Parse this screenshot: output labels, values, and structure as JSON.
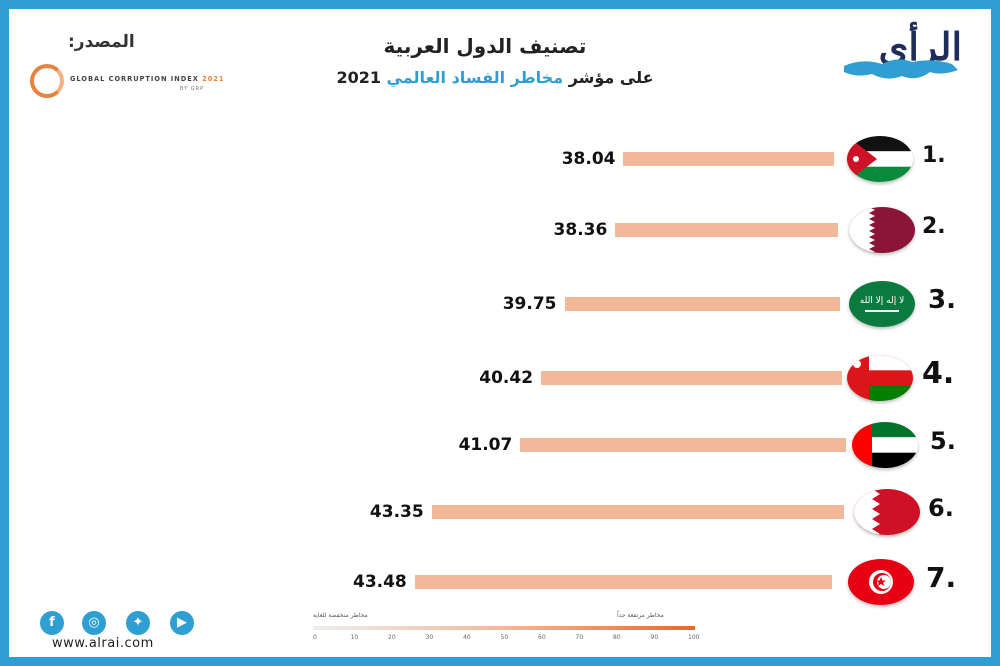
{
  "header": {
    "title": "تصنيف الدول العربية",
    "subtitle_prefix": "على مؤشر",
    "subtitle_highlight": "مخاطر الفساد العالمي",
    "subtitle_year": "2021",
    "source_label": "المصدر:",
    "source_logo_text": "GLOBAL CORRUPTION INDEX",
    "source_logo_year": "2021",
    "source_logo_by": "BY GRP",
    "brand_logo": "الرأي"
  },
  "colors": {
    "bar": "#f2b89a",
    "accent": "#2f9fd3",
    "gci": "#e8823f"
  },
  "chart_data": {
    "type": "bar",
    "orientation": "horizontal",
    "title": "تصنيف الدول العربية على مؤشر مخاطر الفساد العالمي 2021",
    "categories": [
      "Jordan",
      "Qatar",
      "Saudi Arabia",
      "Oman",
      "UAE",
      "Bahrain",
      "Tunisia"
    ],
    "ranks": [
      "1.",
      "2.",
      "3.",
      "4.",
      "5.",
      "6.",
      "7."
    ],
    "values": [
      38.04,
      38.36,
      39.75,
      40.42,
      41.07,
      43.35,
      43.48
    ],
    "labels": [
      "38.04",
      "38.36",
      "39.75",
      "40.42",
      "41.07",
      "43.35",
      "43.48"
    ],
    "legend": {
      "low_label": "مخاطر منخفضة للغاية",
      "high_label": "مخاطر مرتفعة جداً",
      "ticks": [
        "0",
        "10",
        "20",
        "30",
        "40",
        "50",
        "60",
        "70",
        "80",
        "90",
        "100"
      ]
    }
  },
  "footer": {
    "social_icons": [
      "facebook-icon",
      "instagram-icon",
      "twitter-icon",
      "youtube-icon"
    ],
    "url": "www.alrai.com"
  }
}
